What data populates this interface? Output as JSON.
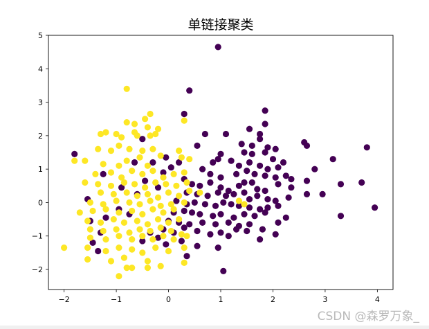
{
  "chart_data": {
    "type": "scatter",
    "title": "单链接聚类",
    "xlabel": "",
    "ylabel": "",
    "xlim": [
      -2.3,
      4.3
    ],
    "ylim": [
      -2.6,
      5.0
    ],
    "xticks": [
      -2,
      -1,
      0,
      1,
      2,
      3,
      4
    ],
    "yticks": [
      -2,
      -1,
      0,
      1,
      2,
      3,
      4,
      5
    ],
    "grid": false,
    "legend": "none",
    "series": [
      {
        "color": "#440154",
        "points": [
          [
            0.95,
            4.65
          ],
          [
            0.4,
            3.35
          ],
          [
            0.3,
            2.65
          ],
          [
            1.85,
            2.75
          ],
          [
            0.7,
            2.05
          ],
          [
            1.1,
            2.05
          ],
          [
            1.55,
            2.2
          ],
          [
            1.85,
            2.35
          ],
          [
            1.75,
            2.05
          ],
          [
            -0.5,
            1.9
          ],
          [
            -1.8,
            1.45
          ],
          [
            0.55,
            1.7
          ],
          [
            1.4,
            1.75
          ],
          [
            1.6,
            1.7
          ],
          [
            1.75,
            1.9
          ],
          [
            1.9,
            1.65
          ],
          [
            2.05,
            1.6
          ],
          [
            2.6,
            1.8
          ],
          [
            2.65,
            1.7
          ],
          [
            3.8,
            1.65
          ],
          [
            1.0,
            1.45
          ],
          [
            0.95,
            1.3
          ],
          [
            1.45,
            1.5
          ],
          [
            1.6,
            1.45
          ],
          [
            1.85,
            1.5
          ],
          [
            2.0,
            1.3
          ],
          [
            2.2,
            1.2
          ],
          [
            3.15,
            1.3
          ],
          [
            0.85,
            1.2
          ],
          [
            1.2,
            1.25
          ],
          [
            1.35,
            1.1
          ],
          [
            1.55,
            1.2
          ],
          [
            1.75,
            1.1
          ],
          [
            1.9,
            1.0
          ],
          [
            2.1,
            1.05
          ],
          [
            2.25,
            0.8
          ],
          [
            2.35,
            0.7
          ],
          [
            2.65,
            0.65
          ],
          [
            2.8,
            1.0
          ],
          [
            0.65,
            1.0
          ],
          [
            0.8,
            0.85
          ],
          [
            1.0,
            0.75
          ],
          [
            1.3,
            0.85
          ],
          [
            1.5,
            0.95
          ],
          [
            1.65,
            0.85
          ],
          [
            1.85,
            0.8
          ],
          [
            2.05,
            0.75
          ],
          [
            2.1,
            0.55
          ],
          [
            2.35,
            0.45
          ],
          [
            3.3,
            0.55
          ],
          [
            3.7,
            0.6
          ],
          [
            0.3,
            0.7
          ],
          [
            0.45,
            0.55
          ],
          [
            0.6,
            0.5
          ],
          [
            0.8,
            0.6
          ],
          [
            1.0,
            0.45
          ],
          [
            1.15,
            0.35
          ],
          [
            1.35,
            0.5
          ],
          [
            1.45,
            0.6
          ],
          [
            1.6,
            0.6
          ],
          [
            1.7,
            0.4
          ],
          [
            1.85,
            0.35
          ],
          [
            0.35,
            0.3
          ],
          [
            0.55,
            0.25
          ],
          [
            0.75,
            0.2
          ],
          [
            0.95,
            0.3
          ],
          [
            1.1,
            0.2
          ],
          [
            1.25,
            0.25
          ],
          [
            1.45,
            0.3
          ],
          [
            1.55,
            0.1
          ],
          [
            1.7,
            0.2
          ],
          [
            1.9,
            0.1
          ],
          [
            2.05,
            0.05
          ],
          [
            2.3,
            0.15
          ],
          [
            2.65,
            0.25
          ],
          [
            2.95,
            0.25
          ],
          [
            0.15,
            0.05
          ],
          [
            0.35,
            -0.05
          ],
          [
            0.5,
            0.0
          ],
          [
            0.7,
            -0.05
          ],
          [
            0.9,
            -0.1
          ],
          [
            1.05,
            0.0
          ],
          [
            1.2,
            -0.05
          ],
          [
            1.35,
            -0.1
          ],
          [
            1.55,
            -0.15
          ],
          [
            1.75,
            -0.2
          ],
          [
            1.9,
            -0.15
          ],
          [
            2.1,
            -0.1
          ],
          [
            3.95,
            -0.15
          ],
          [
            0.1,
            -0.3
          ],
          [
            0.3,
            -0.25
          ],
          [
            0.45,
            -0.3
          ],
          [
            0.6,
            -0.35
          ],
          [
            0.85,
            -0.4
          ],
          [
            1.0,
            -0.35
          ],
          [
            1.25,
            -0.45
          ],
          [
            1.45,
            -0.35
          ],
          [
            1.65,
            -0.4
          ],
          [
            1.85,
            -0.3
          ],
          [
            3.3,
            -0.4
          ],
          [
            0.0,
            -0.55
          ],
          [
            0.2,
            -0.6
          ],
          [
            0.4,
            -0.65
          ],
          [
            0.65,
            -0.6
          ],
          [
            0.9,
            -0.65
          ],
          [
            1.15,
            -0.6
          ],
          [
            1.35,
            -0.7
          ],
          [
            1.55,
            -0.65
          ],
          [
            1.8,
            -0.8
          ],
          [
            2.1,
            -0.6
          ],
          [
            2.25,
            -0.45
          ],
          [
            -0.1,
            -0.8
          ],
          [
            0.1,
            -0.9
          ],
          [
            0.3,
            -0.75
          ],
          [
            0.55,
            -0.85
          ],
          [
            0.8,
            -0.95
          ],
          [
            1.0,
            -0.9
          ],
          [
            1.3,
            -0.8
          ],
          [
            1.5,
            -0.85
          ],
          [
            2.05,
            -0.95
          ],
          [
            1.75,
            -1.1
          ],
          [
            0.25,
            -1.15
          ],
          [
            0.95,
            -1.35
          ],
          [
            -0.05,
            -1.25
          ],
          [
            -0.2,
            -1.05
          ],
          [
            -0.35,
            -0.9
          ],
          [
            -0.5,
            -1.15
          ],
          [
            0.35,
            -1.6
          ],
          [
            1.05,
            -2.05
          ],
          [
            0.55,
            -1.3
          ],
          [
            1.15,
            -1.0
          ],
          [
            0.05,
            1.05
          ],
          [
            0.2,
            1.2
          ],
          [
            -0.3,
            1.2
          ],
          [
            -0.1,
            0.9
          ],
          [
            -0.45,
            0.65
          ],
          [
            -0.6,
            0.25
          ],
          [
            -0.9,
            0.45
          ],
          [
            -0.75,
            -0.35
          ],
          [
            -0.95,
            -0.2
          ],
          [
            -1.2,
            -0.45
          ],
          [
            -1.3,
            -0.9
          ],
          [
            -1.5,
            -0.55
          ],
          [
            -1.55,
            0.1
          ],
          [
            -1.35,
            -1.45
          ],
          [
            -0.05,
            1.35
          ],
          [
            -0.2,
            0.45
          ],
          [
            -0.65,
            1.2
          ],
          [
            -1.25,
            0.85
          ],
          [
            -1.45,
            -1.2
          ]
        ]
      },
      {
        "color": "#fde725",
        "points": [
          [
            -0.8,
            3.4
          ],
          [
            -0.35,
            2.65
          ],
          [
            -0.8,
            2.4
          ],
          [
            -0.65,
            2.35
          ],
          [
            -0.45,
            2.5
          ],
          [
            -0.4,
            2.25
          ],
          [
            -0.2,
            2.2
          ],
          [
            0.3,
            2.45
          ],
          [
            -1.3,
            2.05
          ],
          [
            -1.2,
            2.1
          ],
          [
            -1.0,
            2.05
          ],
          [
            -0.9,
            1.95
          ],
          [
            -0.65,
            2.1
          ],
          [
            -0.6,
            2.0
          ],
          [
            -0.35,
            2.0
          ],
          [
            -0.25,
            2.05
          ],
          [
            -1.8,
            1.25
          ],
          [
            -1.35,
            1.6
          ],
          [
            -1.1,
            1.55
          ],
          [
            -0.95,
            1.7
          ],
          [
            -0.75,
            1.6
          ],
          [
            -0.5,
            1.55
          ],
          [
            -0.3,
            1.6
          ],
          [
            0.2,
            1.55
          ],
          [
            -1.6,
            1.25
          ],
          [
            -1.25,
            1.15
          ],
          [
            -0.95,
            1.1
          ],
          [
            -0.8,
            1.25
          ],
          [
            -0.55,
            1.35
          ],
          [
            -0.4,
            1.1
          ],
          [
            -0.15,
            1.4
          ],
          [
            0.25,
            1.35
          ],
          [
            0.4,
            1.3
          ],
          [
            -1.4,
            0.85
          ],
          [
            -1.1,
            0.9
          ],
          [
            -0.9,
            0.75
          ],
          [
            -0.7,
            0.95
          ],
          [
            -0.5,
            0.85
          ],
          [
            -0.3,
            0.95
          ],
          [
            -0.1,
            0.75
          ],
          [
            0.1,
            0.85
          ],
          [
            0.3,
            0.9
          ],
          [
            -1.6,
            0.6
          ],
          [
            -1.35,
            0.55
          ],
          [
            -1.1,
            0.5
          ],
          [
            -0.85,
            0.6
          ],
          [
            -0.65,
            0.55
          ],
          [
            -0.45,
            0.45
          ],
          [
            -0.25,
            0.6
          ],
          [
            -0.05,
            0.55
          ],
          [
            0.15,
            0.5
          ],
          [
            0.35,
            0.6
          ],
          [
            -1.3,
            0.3
          ],
          [
            -1.05,
            0.25
          ],
          [
            -0.8,
            0.3
          ],
          [
            -0.6,
            0.2
          ],
          [
            -0.4,
            0.25
          ],
          [
            -0.2,
            0.15
          ],
          [
            0.0,
            0.3
          ],
          [
            0.2,
            0.2
          ],
          [
            0.4,
            0.35
          ],
          [
            0.6,
            0.3
          ],
          [
            -1.5,
            0.0
          ],
          [
            -1.25,
            -0.05
          ],
          [
            -1.0,
            0.05
          ],
          [
            -0.75,
            0.0
          ],
          [
            -0.55,
            -0.05
          ],
          [
            -0.35,
            0.05
          ],
          [
            -0.15,
            -0.1
          ],
          [
            0.05,
            -0.05
          ],
          [
            0.3,
            0.0
          ],
          [
            1.35,
            0.05
          ],
          [
            1.45,
            -0.05
          ],
          [
            -1.7,
            -0.3
          ],
          [
            -1.45,
            -0.25
          ],
          [
            -1.2,
            -0.2
          ],
          [
            -0.95,
            -0.3
          ],
          [
            -0.7,
            -0.25
          ],
          [
            -0.5,
            -0.35
          ],
          [
            -0.3,
            -0.2
          ],
          [
            -0.1,
            -0.3
          ],
          [
            0.1,
            -0.2
          ],
          [
            -1.55,
            -0.55
          ],
          [
            -1.3,
            -0.6
          ],
          [
            -1.05,
            -0.5
          ],
          [
            -0.85,
            -0.6
          ],
          [
            -0.6,
            -0.55
          ],
          [
            -0.4,
            -0.65
          ],
          [
            -0.2,
            -0.5
          ],
          [
            0.0,
            -0.6
          ],
          [
            0.2,
            -0.5
          ],
          [
            -1.5,
            -0.8
          ],
          [
            -1.25,
            -0.85
          ],
          [
            -1.0,
            -0.8
          ],
          [
            -0.75,
            -0.9
          ],
          [
            -0.55,
            -0.8
          ],
          [
            -0.35,
            -0.85
          ],
          [
            -0.15,
            -0.75
          ],
          [
            0.05,
            -0.85
          ],
          [
            0.25,
            -0.95
          ],
          [
            -1.5,
            -1.05
          ],
          [
            -1.2,
            -1.1
          ],
          [
            -0.95,
            -1.0
          ],
          [
            -0.7,
            -1.1
          ],
          [
            -0.5,
            -1.0
          ],
          [
            -0.3,
            -1.1
          ],
          [
            -0.1,
            -1.0
          ],
          [
            0.1,
            -1.1
          ],
          [
            0.35,
            -1.0
          ],
          [
            -1.55,
            -1.35
          ],
          [
            -1.2,
            -1.45
          ],
          [
            -0.95,
            -1.35
          ],
          [
            -0.7,
            -1.4
          ],
          [
            -0.5,
            -1.5
          ],
          [
            -0.25,
            -1.35
          ],
          [
            0.0,
            -1.45
          ],
          [
            0.3,
            -1.35
          ],
          [
            -2.0,
            -1.35
          ],
          [
            -1.55,
            -1.7
          ],
          [
            -1.1,
            -1.75
          ],
          [
            -0.85,
            -1.65
          ],
          [
            -0.4,
            -1.75
          ],
          [
            0.3,
            -1.8
          ],
          [
            -0.8,
            -1.95
          ],
          [
            -0.7,
            -1.95
          ],
          [
            -0.4,
            -1.95
          ],
          [
            -0.15,
            -1.9
          ],
          [
            -0.95,
            -2.2
          ]
        ]
      }
    ]
  },
  "watermark": "CSDN @森罗万象_"
}
